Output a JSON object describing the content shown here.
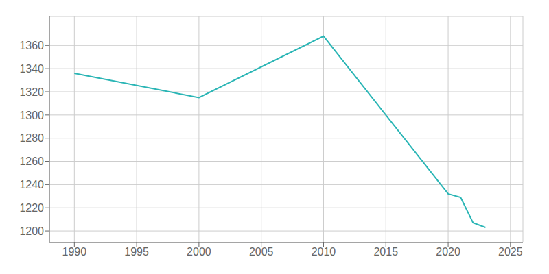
{
  "chart_data": {
    "type": "line",
    "x": [
      1990,
      2000,
      2010,
      2020,
      2021,
      2022,
      2023
    ],
    "values": [
      1336,
      1315,
      1368,
      1232,
      1229,
      1207,
      1203
    ],
    "color": "#2ab5b5",
    "xlim": [
      1988,
      2026
    ],
    "ylim": [
      1190,
      1385
    ],
    "xticks": [
      1990,
      1995,
      2000,
      2005,
      2010,
      2015,
      2020,
      2025
    ],
    "yticks": [
      1200,
      1220,
      1240,
      1260,
      1280,
      1300,
      1320,
      1340,
      1360
    ],
    "grid": true
  }
}
